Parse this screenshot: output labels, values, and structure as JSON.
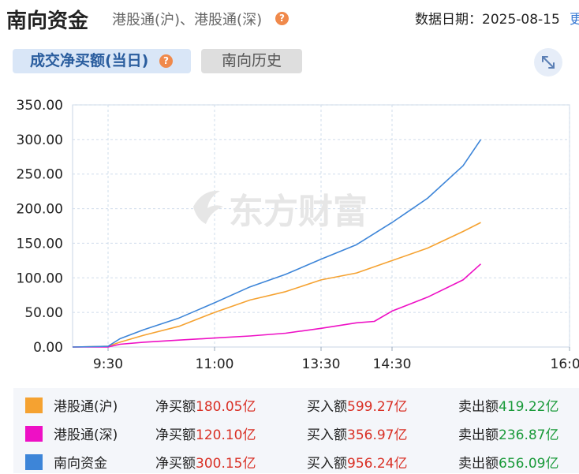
{
  "header": {
    "title": "南向资金",
    "subtitle": "港股通(沪)、港股通(深)",
    "help_glyph": "?",
    "date_label": "数据日期：2025-08-15",
    "date_more": "更"
  },
  "tabs": [
    {
      "label": "成交净买额(当日)",
      "active": true
    },
    {
      "label": "南向历史",
      "active": false
    }
  ],
  "watermark": "东方财富",
  "colors": {
    "hgt_sh": "#f5a231",
    "hgt_sz": "#ee10c5",
    "southbound": "#3d85d8"
  },
  "chart_data": {
    "type": "line",
    "title": "",
    "xlabel": "",
    "ylabel": "",
    "ylim": [
      0,
      350
    ],
    "y_ticks": [
      "0.00",
      "50.00",
      "100.00",
      "150.00",
      "200.00",
      "250.00",
      "300.00",
      "350.00"
    ],
    "x_ticks": [
      "9:30",
      "11:00",
      "13:30",
      "14:30",
      "16:00"
    ],
    "x_tick_minutes": [
      0,
      90,
      180,
      240,
      390
    ],
    "x_range_minutes": [
      -30,
      390
    ],
    "grid": true,
    "series": [
      {
        "name": "港股通(沪)",
        "color": "#f5a231",
        "points": [
          [
            -30,
            0
          ],
          [
            0,
            1
          ],
          [
            10,
            7
          ],
          [
            30,
            17
          ],
          [
            60,
            30
          ],
          [
            90,
            50
          ],
          [
            120,
            68
          ],
          [
            150,
            80
          ],
          [
            180,
            97
          ],
          [
            210,
            107
          ],
          [
            240,
            125
          ],
          [
            270,
            143
          ],
          [
            300,
            167
          ],
          [
            315,
            180
          ]
        ]
      },
      {
        "name": "港股通(深)",
        "color": "#ee10c5",
        "points": [
          [
            -30,
            0
          ],
          [
            0,
            0
          ],
          [
            10,
            4
          ],
          [
            30,
            7
          ],
          [
            60,
            10
          ],
          [
            90,
            13
          ],
          [
            120,
            16
          ],
          [
            150,
            20
          ],
          [
            180,
            27
          ],
          [
            210,
            35
          ],
          [
            225,
            37
          ],
          [
            240,
            52
          ],
          [
            270,
            72
          ],
          [
            300,
            97
          ],
          [
            315,
            120
          ]
        ]
      },
      {
        "name": "南向资金",
        "color": "#3d85d8",
        "points": [
          [
            -30,
            0
          ],
          [
            0,
            1
          ],
          [
            10,
            12
          ],
          [
            30,
            25
          ],
          [
            60,
            42
          ],
          [
            90,
            64
          ],
          [
            120,
            87
          ],
          [
            150,
            105
          ],
          [
            180,
            127
          ],
          [
            210,
            148
          ],
          [
            240,
            180
          ],
          [
            270,
            215
          ],
          [
            300,
            262
          ],
          [
            315,
            300
          ]
        ]
      }
    ]
  },
  "legend": [
    {
      "name": "港股通(沪)",
      "color": "#f5a231",
      "net_label": "净买额",
      "net_value": "180.05亿",
      "buy_label": "买入额",
      "buy_value": "599.27亿",
      "sell_label": "卖出额",
      "sell_value": "419.22亿"
    },
    {
      "name": "港股通(深)",
      "color": "#ee10c5",
      "net_label": "净买额",
      "net_value": "120.10亿",
      "buy_label": "买入额",
      "buy_value": "356.97亿",
      "sell_label": "卖出额",
      "sell_value": "236.87亿"
    },
    {
      "name": "南向资金",
      "color": "#3d85d8",
      "net_label": "净买额",
      "net_value": "300.15亿",
      "buy_label": "买入额",
      "buy_value": "956.24亿",
      "sell_label": "卖出额",
      "sell_value": "656.09亿"
    }
  ]
}
